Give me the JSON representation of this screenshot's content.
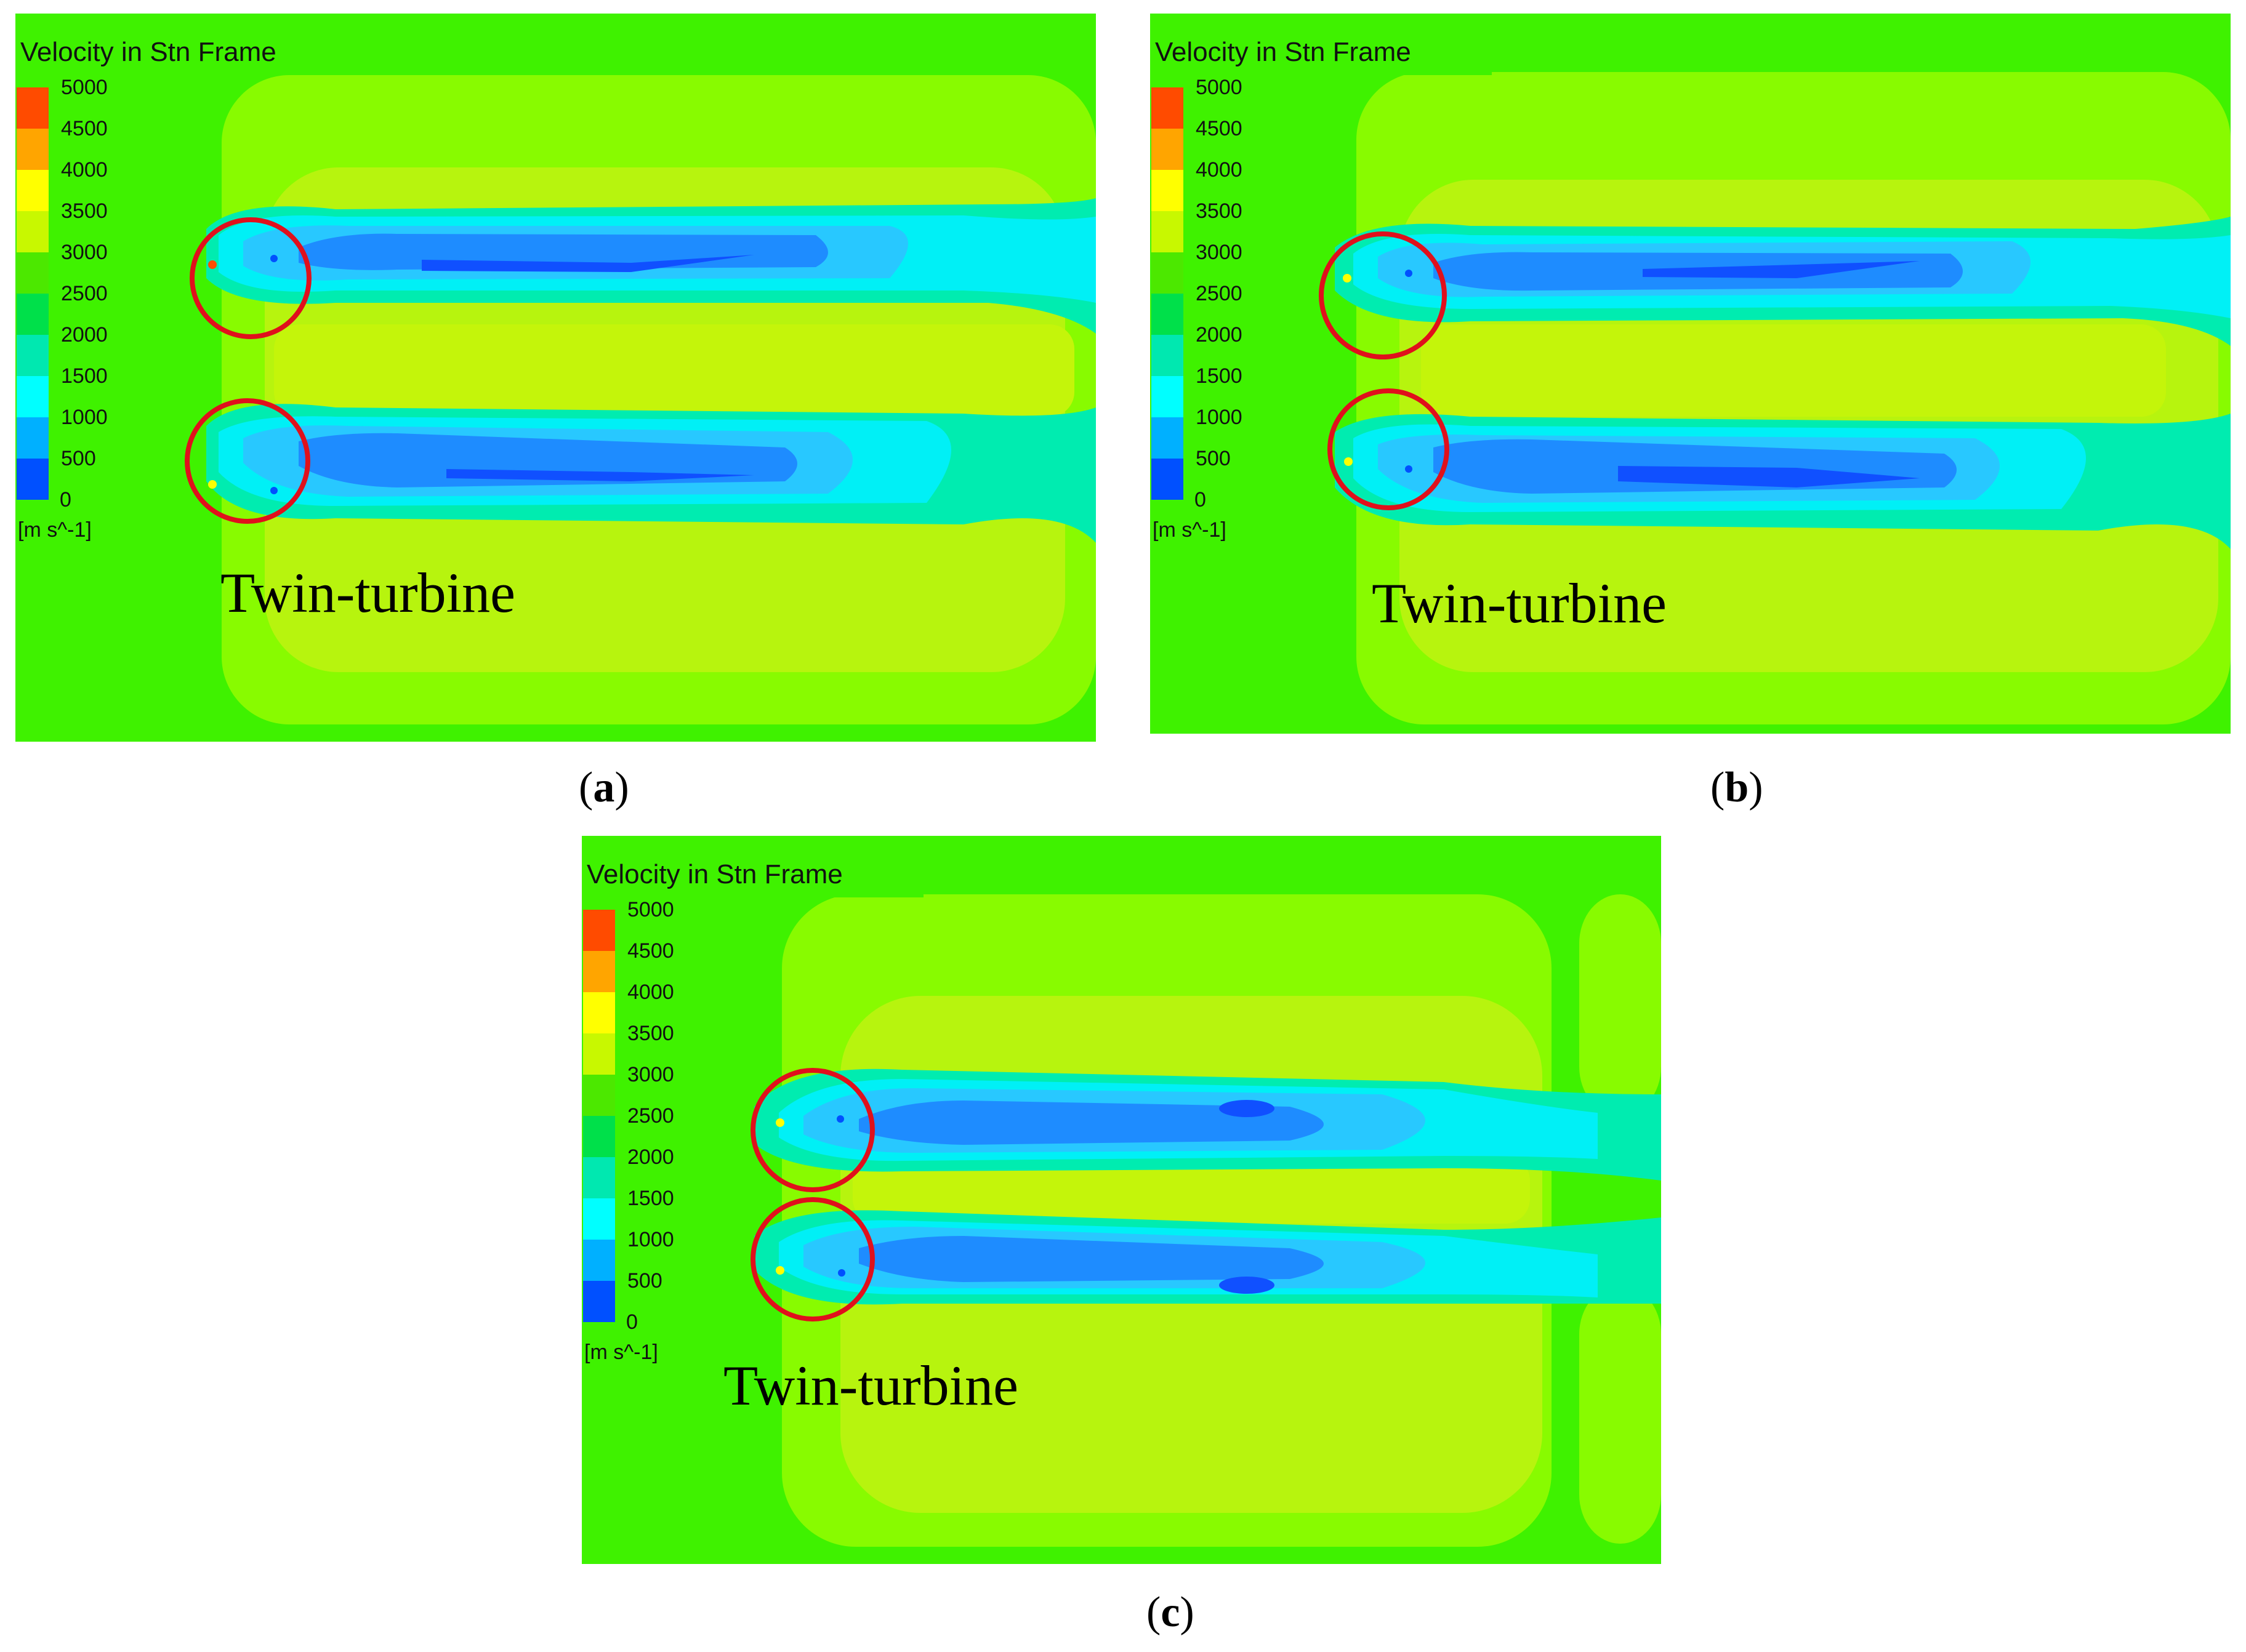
{
  "legend": {
    "title": "Velocity in Stn Frame",
    "unit": "[m s^-1]",
    "ticks": [
      "5000",
      "4500",
      "4000",
      "3500",
      "3000",
      "2500",
      "2000",
      "1500",
      "1000",
      "500",
      "0"
    ],
    "colors": [
      "#ff4b00",
      "#ffa500",
      "#ffff00",
      "#c8f800",
      "#4ce800",
      "#00e04a",
      "#00e8b0",
      "#00ffff",
      "#00b0ff",
      "#0050ff",
      "#0000ff"
    ]
  },
  "panels": [
    {
      "label": "Twin-turbine",
      "caption_letter": "a"
    },
    {
      "label": "Twin-turbine",
      "caption_letter": "b"
    },
    {
      "label": "Twin-turbine",
      "caption_letter": "c"
    }
  ],
  "colors": {
    "background_field": "#3ff200",
    "outer_band": "#88fb00",
    "inner_band": "#b7f40e",
    "wake_outer": "#00ecb0",
    "wake_mid": "#00f0f6",
    "wake_light": "#28c8ff",
    "wake_core": "#1e8cff",
    "wake_deep": "#1050ff",
    "circle": "#e0101c"
  }
}
